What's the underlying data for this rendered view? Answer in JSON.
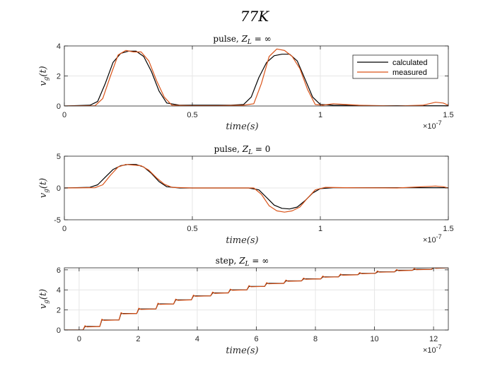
{
  "figure": {
    "title": "77K"
  },
  "colors": {
    "calculated": "#000000",
    "measured": "#D95319",
    "grid": "#e6e6e6",
    "axis": "#262626"
  },
  "legend": {
    "placement": "top-right",
    "entries": [
      "calculated",
      "measured"
    ]
  },
  "chart_data": [
    {
      "type": "line",
      "title": "pulse, Z_L = ∞",
      "title_text": "pulse, ",
      "title_math": "Z",
      "title_sub": "L",
      "title_rel": " = ∞",
      "xlabel": "time(s)",
      "ylabel": "v_g(t)",
      "ylabel_main": "v",
      "ylabel_sub": "g",
      "ylabel_tail": "(t)",
      "x_exponent_label": "×10",
      "x_exponent": "-7",
      "xlim": [
        0,
        1.5
      ],
      "ylim": [
        0,
        4
      ],
      "xticks": [
        0,
        0.5,
        1,
        1.5
      ],
      "xtick_labels": [
        "0",
        "0.5",
        "1",
        "1.5"
      ],
      "yticks": [
        0,
        2,
        4
      ],
      "ytick_labels": [
        "0",
        "2",
        "4"
      ],
      "grid": true,
      "legend": true,
      "series": [
        {
          "name": "calculated",
          "x": [
            0,
            0.1,
            0.13,
            0.16,
            0.19,
            0.22,
            0.25,
            0.28,
            0.31,
            0.34,
            0.37,
            0.4,
            0.45,
            0.55,
            0.65,
            0.7,
            0.73,
            0.76,
            0.79,
            0.82,
            0.85,
            0.88,
            0.91,
            0.94,
            0.97,
            1.0,
            1.05,
            1.2,
            1.5
          ],
          "y": [
            0,
            0.05,
            0.3,
            1.5,
            2.9,
            3.5,
            3.65,
            3.65,
            3.3,
            2.3,
            1.0,
            0.2,
            0.05,
            0.05,
            0.05,
            0.1,
            0.6,
            1.9,
            2.9,
            3.35,
            3.45,
            3.45,
            3.0,
            1.8,
            0.6,
            0.1,
            0.05,
            0.02,
            0.02
          ]
        },
        {
          "name": "measured",
          "x": [
            0,
            0.12,
            0.15,
            0.18,
            0.21,
            0.24,
            0.27,
            0.3,
            0.33,
            0.36,
            0.39,
            0.42,
            0.5,
            0.6,
            0.7,
            0.74,
            0.77,
            0.8,
            0.83,
            0.86,
            0.89,
            0.92,
            0.95,
            0.98,
            1.01,
            1.05,
            1.1,
            1.15,
            1.3,
            1.4,
            1.45,
            1.48,
            1.5
          ],
          "y": [
            0,
            0.02,
            0.5,
            2.0,
            3.4,
            3.7,
            3.6,
            3.6,
            3.0,
            1.7,
            0.6,
            0.05,
            0.02,
            0.02,
            0.05,
            0.15,
            1.5,
            3.3,
            3.8,
            3.7,
            3.3,
            2.5,
            1.1,
            0.1,
            0.05,
            0.15,
            0.1,
            0.05,
            0.0,
            0.05,
            0.25,
            0.2,
            0.05
          ]
        }
      ]
    },
    {
      "type": "line",
      "title": "pulse, Z_L = 0",
      "title_text": "pulse, ",
      "title_math": "Z",
      "title_sub": "L",
      "title_rel": " = 0",
      "xlabel": "time(s)",
      "ylabel": "v_g(t)",
      "ylabel_main": "v",
      "ylabel_sub": "g",
      "ylabel_tail": "(t)",
      "x_exponent_label": "×10",
      "x_exponent": "-7",
      "xlim": [
        0,
        1.5
      ],
      "ylim": [
        -5,
        5
      ],
      "xticks": [
        0,
        0.5,
        1,
        1.5
      ],
      "xtick_labels": [
        "0",
        "0.5",
        "1",
        "1.5"
      ],
      "yticks": [
        -5,
        0,
        5
      ],
      "ytick_labels": [
        "-5",
        "0",
        "5"
      ],
      "grid": true,
      "legend": false,
      "series": [
        {
          "name": "calculated",
          "x": [
            0,
            0.1,
            0.13,
            0.16,
            0.19,
            0.22,
            0.25,
            0.28,
            0.31,
            0.34,
            0.37,
            0.4,
            0.45,
            0.6,
            0.72,
            0.76,
            0.79,
            0.82,
            0.85,
            0.88,
            0.91,
            0.94,
            0.97,
            1.0,
            1.05,
            1.2,
            1.5
          ],
          "y": [
            0,
            0.1,
            0.5,
            1.7,
            2.9,
            3.5,
            3.7,
            3.7,
            3.3,
            2.3,
            1.0,
            0.2,
            0.0,
            0.0,
            0.0,
            -0.3,
            -1.5,
            -2.7,
            -3.2,
            -3.3,
            -3.0,
            -2.0,
            -0.8,
            -0.1,
            0.05,
            0.05,
            0.05
          ]
        },
        {
          "name": "measured",
          "x": [
            0,
            0.12,
            0.15,
            0.18,
            0.21,
            0.24,
            0.27,
            0.3,
            0.33,
            0.36,
            0.39,
            0.42,
            0.5,
            0.65,
            0.74,
            0.77,
            0.8,
            0.83,
            0.86,
            0.89,
            0.92,
            0.95,
            0.98,
            1.02,
            1.1,
            1.3,
            1.45,
            1.48,
            1.5
          ],
          "y": [
            0,
            0.05,
            0.5,
            2.0,
            3.3,
            3.7,
            3.6,
            3.5,
            2.8,
            1.6,
            0.6,
            0.1,
            0.0,
            0.0,
            0.0,
            -1.0,
            -2.8,
            -3.6,
            -3.8,
            -3.6,
            -3.0,
            -1.6,
            -0.3,
            0.1,
            0.05,
            0.0,
            0.3,
            0.2,
            0.0
          ]
        }
      ]
    },
    {
      "type": "line",
      "title": "step, Z_L = ∞",
      "title_text": "step, ",
      "title_math": "Z",
      "title_sub": "L",
      "title_rel": " = ∞",
      "xlabel": "time(s)",
      "ylabel": "v_g(t)",
      "ylabel_main": "v",
      "ylabel_sub": "g",
      "ylabel_tail": "(t)",
      "x_exponent_label": "×10",
      "x_exponent": "-7",
      "xlim": [
        -0.5,
        12.5
      ],
      "ylim": [
        0,
        6.2
      ],
      "xticks": [
        0,
        2,
        4,
        6,
        8,
        10,
        12
      ],
      "xtick_labels": [
        "0",
        "2",
        "4",
        "6",
        "8",
        "10",
        "12"
      ],
      "yticks": [
        0,
        2,
        4,
        6
      ],
      "ytick_labels": [
        "0",
        "2",
        "4",
        "6"
      ],
      "grid": true,
      "legend": false,
      "step_model": {
        "step_times": [
          0.15,
          0.72,
          1.37,
          1.97,
          2.62,
          3.22,
          3.82,
          4.47,
          5.07,
          5.7,
          6.3,
          6.95,
          7.55,
          8.2,
          8.8,
          9.45,
          10.05,
          10.7,
          11.3,
          11.95
        ],
        "levels": [
          0.35,
          1.0,
          1.65,
          2.1,
          2.6,
          3.0,
          3.4,
          3.7,
          4.0,
          4.35,
          4.65,
          4.9,
          5.1,
          5.3,
          5.5,
          5.65,
          5.8,
          5.95,
          6.05,
          6.2
        ]
      },
      "series": [
        {
          "name": "calculated"
        },
        {
          "name": "measured"
        }
      ]
    }
  ]
}
